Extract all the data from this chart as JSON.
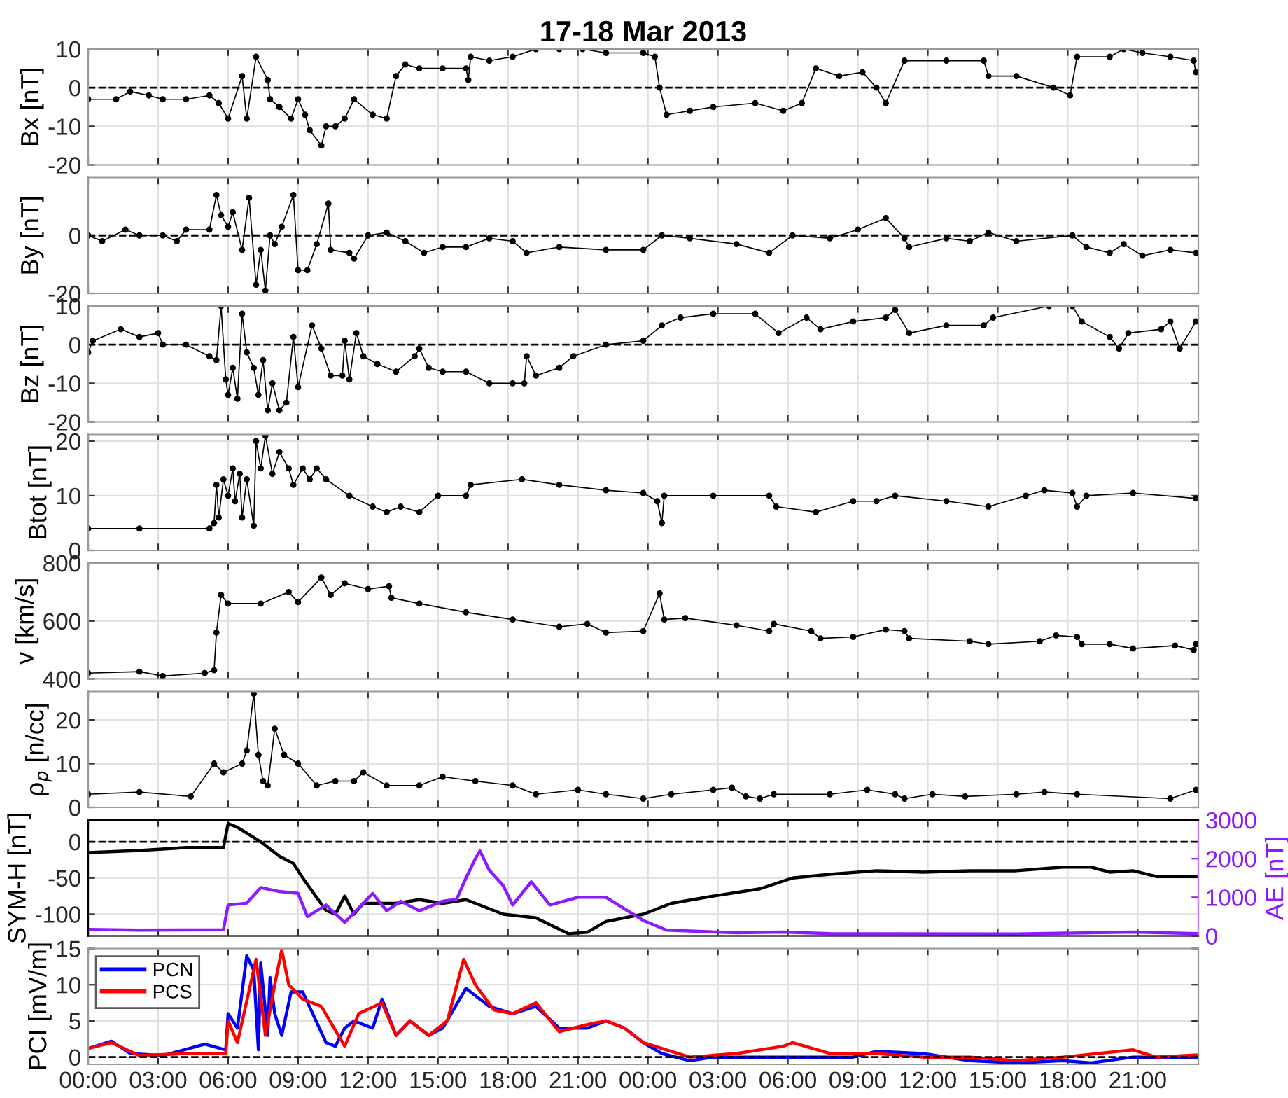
{
  "chart_data": [
    {
      "type": "line",
      "title": "17-18 Mar 2013",
      "ylabel": "Bx [nT]",
      "xlim": [
        "2013-03-17T00:00",
        "2013-03-18T23:36"
      ],
      "ylim": [
        -20,
        10
      ],
      "yticks": [
        -20,
        -10,
        0,
        10
      ],
      "grid": true,
      "marker": "circle",
      "line_style": "solid",
      "tick_labels": "y",
      "ref_lines": [
        {
          "axis": "y",
          "value": 0,
          "line_style": "dashed",
          "color": "#000000"
        }
      ],
      "xticks": [
        "2013-03-17T00:00",
        "2013-03-17T03:00",
        "2013-03-17T06:00",
        "2013-03-17T09:00",
        "2013-03-17T12:00",
        "2013-03-17T15:00",
        "2013-03-17T18:00",
        "2013-03-17T21:00",
        "2013-03-18T00:00",
        "2013-03-18T03:00",
        "2013-03-18T06:00",
        "2013-03-18T09:00",
        "2013-03-18T12:00",
        "2013-03-18T15:00",
        "2013-03-18T18:00",
        "2013-03-18T21:00"
      ],
      "series": [
        {
          "color": "#000000",
          "x": [
            "2013-03-17T00:00",
            "2013-03-17T01:12",
            "2013-03-17T01:48",
            "2013-03-17T02:36",
            "2013-03-17T03:12",
            "2013-03-17T04:12",
            "2013-03-17T05:12",
            "2013-03-17T05:36",
            "2013-03-17T06:00",
            "2013-03-17T06:36",
            "2013-03-17T06:48",
            "2013-03-17T07:12",
            "2013-03-17T07:42",
            "2013-03-17T07:48",
            "2013-03-17T08:12",
            "2013-03-17T08:42",
            "2013-03-17T09:00",
            "2013-03-17T09:18",
            "2013-03-17T09:30",
            "2013-03-17T10:00",
            "2013-03-17T10:12",
            "2013-03-17T10:36",
            "2013-03-17T11:00",
            "2013-03-17T11:24",
            "2013-03-17T12:12",
            "2013-03-17T12:48",
            "2013-03-17T13:12",
            "2013-03-17T13:36",
            "2013-03-17T14:12",
            "2013-03-17T15:12",
            "2013-03-17T16:12",
            "2013-03-17T16:18",
            "2013-03-17T16:24",
            "2013-03-17T17:12",
            "2013-03-17T18:12",
            "2013-03-17T19:12",
            "2013-03-17T20:12",
            "2013-03-17T21:12",
            "2013-03-17T22:12",
            "2013-03-17T23:48",
            "2013-03-18T00:18",
            "2013-03-18T00:30",
            "2013-03-18T00:48",
            "2013-03-18T01:48",
            "2013-03-18T02:48",
            "2013-03-18T04:36",
            "2013-03-18T05:48",
            "2013-03-18T06:36",
            "2013-03-18T07:12",
            "2013-03-18T08:12",
            "2013-03-18T09:12",
            "2013-03-18T09:48",
            "2013-03-18T10:12",
            "2013-03-18T11:00",
            "2013-03-18T12:48",
            "2013-03-18T14:24",
            "2013-03-18T14:36",
            "2013-03-18T15:48",
            "2013-03-18T17:24",
            "2013-03-18T18:06",
            "2013-03-18T18:24",
            "2013-03-18T19:48",
            "2013-03-18T20:24",
            "2013-03-18T21:12",
            "2013-03-18T22:24",
            "2013-03-18T23:24",
            "2013-03-18T23:30"
          ],
          "values": [
            -3,
            -3,
            -1,
            -2,
            -3,
            -3,
            -2,
            -4,
            -8,
            3,
            -8,
            8,
            2,
            -3,
            -5,
            -8,
            -3,
            -7,
            -11,
            -15,
            -10,
            -10,
            -8,
            -3,
            -7,
            -8,
            3,
            6,
            5,
            5,
            5,
            2,
            8,
            7,
            8,
            10,
            10,
            10,
            9,
            9,
            8,
            0,
            -7,
            -6,
            -5,
            -4,
            -6,
            -4,
            5,
            3,
            4,
            0,
            -4,
            7,
            7,
            7,
            3,
            3,
            0,
            -2,
            8,
            8,
            10,
            9,
            8,
            7,
            4
          ]
        }
      ]
    },
    {
      "type": "line",
      "ylabel": "By [nT]",
      "xlim": [
        "2013-03-17T00:00",
        "2013-03-18T23:36"
      ],
      "ylim": [
        -20,
        20
      ],
      "yticks": [
        -20,
        0
      ],
      "grid": true,
      "marker": "circle",
      "line_style": "solid",
      "tick_labels": "y",
      "ref_lines": [
        {
          "axis": "y",
          "value": 0,
          "line_style": "dashed",
          "color": "#000000"
        }
      ],
      "xticks": [
        "2013-03-17T00:00",
        "2013-03-17T03:00",
        "2013-03-17T06:00",
        "2013-03-17T09:00",
        "2013-03-17T12:00",
        "2013-03-17T15:00",
        "2013-03-17T18:00",
        "2013-03-17T21:00",
        "2013-03-18T00:00",
        "2013-03-18T03:00",
        "2013-03-18T06:00",
        "2013-03-18T09:00",
        "2013-03-18T12:00",
        "2013-03-18T15:00",
        "2013-03-18T18:00",
        "2013-03-18T21:00"
      ],
      "series": [
        {
          "color": "#000000",
          "x": [
            "2013-03-17T00:00",
            "2013-03-17T00:36",
            "2013-03-17T01:36",
            "2013-03-17T02:12",
            "2013-03-17T03:12",
            "2013-03-17T03:48",
            "2013-03-17T04:12",
            "2013-03-17T05:12",
            "2013-03-17T05:30",
            "2013-03-17T05:42",
            "2013-03-17T06:00",
            "2013-03-17T06:12",
            "2013-03-17T06:36",
            "2013-03-17T06:54",
            "2013-03-17T07:12",
            "2013-03-17T07:24",
            "2013-03-17T07:36",
            "2013-03-17T07:48",
            "2013-03-17T08:00",
            "2013-03-17T08:18",
            "2013-03-17T08:48",
            "2013-03-17T09:00",
            "2013-03-17T09:24",
            "2013-03-17T09:48",
            "2013-03-17T10:18",
            "2013-03-17T10:24",
            "2013-03-17T11:12",
            "2013-03-17T11:24",
            "2013-03-17T12:00",
            "2013-03-17T12:48",
            "2013-03-17T13:36",
            "2013-03-17T14:24",
            "2013-03-17T15:12",
            "2013-03-17T16:12",
            "2013-03-17T17:12",
            "2013-03-17T18:12",
            "2013-03-17T18:48",
            "2013-03-17T20:12",
            "2013-03-17T22:12",
            "2013-03-17T23:48",
            "2013-03-18T00:36",
            "2013-03-18T01:48",
            "2013-03-18T03:48",
            "2013-03-18T05:12",
            "2013-03-18T06:12",
            "2013-03-18T07:48",
            "2013-03-18T09:00",
            "2013-03-18T10:12",
            "2013-03-18T11:00",
            "2013-03-18T11:12",
            "2013-03-18T12:48",
            "2013-03-18T13:48",
            "2013-03-18T14:36",
            "2013-03-18T15:48",
            "2013-03-18T18:12",
            "2013-03-18T18:48",
            "2013-03-18T19:48",
            "2013-03-18T20:24",
            "2013-03-18T21:12",
            "2013-03-18T22:24",
            "2013-03-18T23:30"
          ],
          "values": [
            0,
            -2,
            2,
            0,
            0,
            -2,
            2,
            2,
            14,
            7,
            3,
            8,
            -5,
            13,
            -17,
            -5,
            -19,
            0,
            -3,
            3,
            14,
            -12,
            -12,
            -3,
            11,
            -5,
            -6,
            -8,
            0,
            1,
            -2,
            -6,
            -4,
            -4,
            -1,
            -2,
            -6,
            -4,
            -5,
            -5,
            0,
            -1,
            -3,
            -6,
            0,
            -1,
            2,
            6,
            -1,
            -4,
            -1,
            -2,
            1,
            -2,
            0,
            -4,
            -6,
            -3,
            -7,
            -5,
            -6
          ]
        }
      ]
    },
    {
      "type": "line",
      "ylabel": "Bz [nT]",
      "xlim": [
        "2013-03-17T00:00",
        "2013-03-18T23:36"
      ],
      "ylim": [
        -20,
        10
      ],
      "yticks": [
        -20,
        -10,
        0,
        10
      ],
      "grid": true,
      "marker": "circle",
      "line_style": "solid",
      "tick_labels": "y",
      "ref_lines": [
        {
          "axis": "y",
          "value": 0,
          "line_style": "dashed",
          "color": "#000000"
        }
      ],
      "xticks": [
        "2013-03-17T00:00",
        "2013-03-17T03:00",
        "2013-03-17T06:00",
        "2013-03-17T09:00",
        "2013-03-17T12:00",
        "2013-03-17T15:00",
        "2013-03-17T18:00",
        "2013-03-17T21:00",
        "2013-03-18T00:00",
        "2013-03-18T03:00",
        "2013-03-18T06:00",
        "2013-03-18T09:00",
        "2013-03-18T12:00",
        "2013-03-18T15:00",
        "2013-03-18T18:00",
        "2013-03-18T21:00"
      ],
      "series": [
        {
          "color": "#000000",
          "x": [
            "2013-03-17T00:00",
            "2013-03-17T00:12",
            "2013-03-17T01:24",
            "2013-03-17T02:12",
            "2013-03-17T03:00",
            "2013-03-17T03:12",
            "2013-03-17T04:12",
            "2013-03-17T05:12",
            "2013-03-17T05:30",
            "2013-03-17T05:42",
            "2013-03-17T05:54",
            "2013-03-17T06:00",
            "2013-03-17T06:12",
            "2013-03-17T06:24",
            "2013-03-17T06:36",
            "2013-03-17T06:48",
            "2013-03-17T07:06",
            "2013-03-17T07:18",
            "2013-03-17T07:30",
            "2013-03-17T07:42",
            "2013-03-17T07:54",
            "2013-03-17T08:12",
            "2013-03-17T08:30",
            "2013-03-17T08:48",
            "2013-03-17T09:00",
            "2013-03-17T09:36",
            "2013-03-17T10:00",
            "2013-03-17T10:24",
            "2013-03-17T10:54",
            "2013-03-17T11:00",
            "2013-03-17T11:12",
            "2013-03-17T11:30",
            "2013-03-17T11:48",
            "2013-03-17T12:24",
            "2013-03-17T13:12",
            "2013-03-17T14:00",
            "2013-03-17T14:12",
            "2013-03-17T14:36",
            "2013-03-17T15:12",
            "2013-03-17T16:12",
            "2013-03-17T17:12",
            "2013-03-17T18:12",
            "2013-03-17T18:42",
            "2013-03-17T18:48",
            "2013-03-17T19:12",
            "2013-03-17T20:12",
            "2013-03-17T20:48",
            "2013-03-17T22:12",
            "2013-03-17T23:48",
            "2013-03-18T00:36",
            "2013-03-18T01:24",
            "2013-03-18T02:48",
            "2013-03-18T04:36",
            "2013-03-18T05:36",
            "2013-03-18T06:48",
            "2013-03-18T07:24",
            "2013-03-18T08:48",
            "2013-03-18T10:12",
            "2013-03-18T10:36",
            "2013-03-18T11:12",
            "2013-03-18T12:48",
            "2013-03-18T14:24",
            "2013-03-18T14:48",
            "2013-03-18T17:12",
            "2013-03-18T18:12",
            "2013-03-18T18:36",
            "2013-03-18T19:48",
            "2013-03-18T20:12",
            "2013-03-18T20:36",
            "2013-03-18T22:00",
            "2013-03-18T22:24",
            "2013-03-18T22:48",
            "2013-03-18T23:30"
          ],
          "values": [
            -2,
            1,
            4,
            2,
            3,
            0,
            0,
            -3,
            -4,
            10,
            -9,
            -13,
            -6,
            -14,
            8,
            -2,
            -6,
            -13,
            -4,
            -17,
            -10,
            -17,
            -15,
            2,
            -11,
            5,
            -1,
            -8,
            -8,
            1,
            -9,
            3,
            -3,
            -5,
            -7,
            -3,
            -1,
            -6,
            -7,
            -7,
            -10,
            -10,
            -10,
            -3,
            -8,
            -6,
            -3,
            0,
            1,
            5,
            7,
            8,
            8,
            3,
            7,
            4,
            6,
            7,
            9,
            3,
            5,
            5,
            7,
            10,
            10,
            6,
            2,
            -1,
            3,
            4,
            6,
            -1,
            6
          ]
        }
      ]
    },
    {
      "type": "line",
      "ylabel": "Btot [nT]",
      "xlim": [
        "2013-03-17T00:00",
        "2013-03-18T23:36"
      ],
      "ylim": [
        0,
        21.2
      ],
      "yticks": [
        0,
        10,
        20
      ],
      "grid": true,
      "marker": "circle",
      "line_style": "solid",
      "tick_labels": "y",
      "xticks": [
        "2013-03-17T00:00",
        "2013-03-17T03:00",
        "2013-03-17T06:00",
        "2013-03-17T09:00",
        "2013-03-17T12:00",
        "2013-03-17T15:00",
        "2013-03-17T18:00",
        "2013-03-17T21:00",
        "2013-03-18T00:00",
        "2013-03-18T03:00",
        "2013-03-18T06:00",
        "2013-03-18T09:00",
        "2013-03-18T12:00",
        "2013-03-18T15:00",
        "2013-03-18T18:00",
        "2013-03-18T21:00"
      ],
      "series": [
        {
          "color": "#000000",
          "x": [
            "2013-03-17T00:00",
            "2013-03-17T02:12",
            "2013-03-17T05:12",
            "2013-03-17T05:24",
            "2013-03-17T05:30",
            "2013-03-17T05:36",
            "2013-03-17T05:48",
            "2013-03-17T06:00",
            "2013-03-17T06:12",
            "2013-03-17T06:18",
            "2013-03-17T06:30",
            "2013-03-17T06:36",
            "2013-03-17T06:48",
            "2013-03-17T07:06",
            "2013-03-17T07:12",
            "2013-03-17T07:24",
            "2013-03-17T07:36",
            "2013-03-17T07:54",
            "2013-03-17T08:12",
            "2013-03-17T08:36",
            "2013-03-17T08:48",
            "2013-03-17T09:12",
            "2013-03-17T09:30",
            "2013-03-17T09:48",
            "2013-03-17T10:12",
            "2013-03-17T11:12",
            "2013-03-17T12:12",
            "2013-03-17T12:48",
            "2013-03-17T13:24",
            "2013-03-17T14:12",
            "2013-03-17T15:00",
            "2013-03-17T16:12",
            "2013-03-17T16:24",
            "2013-03-17T18:36",
            "2013-03-17T20:12",
            "2013-03-17T22:12",
            "2013-03-17T23:48",
            "2013-03-18T00:24",
            "2013-03-18T00:36",
            "2013-03-18T00:42",
            "2013-03-18T02:48",
            "2013-03-18T05:12",
            "2013-03-18T05:30",
            "2013-03-18T07:12",
            "2013-03-18T08:48",
            "2013-03-18T09:48",
            "2013-03-18T10:36",
            "2013-03-18T12:48",
            "2013-03-18T14:36",
            "2013-03-18T16:12",
            "2013-03-18T17:00",
            "2013-03-18T18:12",
            "2013-03-18T18:24",
            "2013-03-18T18:48",
            "2013-03-18T20:48",
            "2013-03-18T23:30"
          ],
          "values": [
            4,
            4,
            4,
            5,
            12,
            6,
            13,
            10,
            15,
            9,
            14,
            6,
            13,
            4.5,
            20,
            15,
            21,
            14,
            18,
            15,
            12,
            15,
            13,
            15,
            13,
            10,
            8,
            7,
            8,
            7,
            10,
            10,
            12,
            13,
            12,
            11,
            10.5,
            9,
            5,
            10,
            10,
            10,
            8,
            7,
            9,
            9,
            10,
            9,
            8,
            10,
            11,
            10.5,
            8,
            10,
            10.5,
            9.5
          ]
        }
      ]
    },
    {
      "type": "line",
      "ylabel": "v [km/s]",
      "xlim": [
        "2013-03-17T00:00",
        "2013-03-18T23:36"
      ],
      "ylim": [
        400,
        800
      ],
      "yticks": [
        400,
        600,
        800
      ],
      "grid": true,
      "marker": "circle",
      "line_style": "solid",
      "tick_labels": "y",
      "xticks": [
        "2013-03-17T00:00",
        "2013-03-17T03:00",
        "2013-03-17T06:00",
        "2013-03-17T09:00",
        "2013-03-17T12:00",
        "2013-03-17T15:00",
        "2013-03-17T18:00",
        "2013-03-17T21:00",
        "2013-03-18T00:00",
        "2013-03-18T03:00",
        "2013-03-18T06:00",
        "2013-03-18T09:00",
        "2013-03-18T12:00",
        "2013-03-18T15:00",
        "2013-03-18T18:00",
        "2013-03-18T21:00"
      ],
      "series": [
        {
          "color": "#000000",
          "x": [
            "2013-03-17T00:00",
            "2013-03-17T02:12",
            "2013-03-17T03:12",
            "2013-03-17T05:00",
            "2013-03-17T05:24",
            "2013-03-17T05:30",
            "2013-03-17T05:42",
            "2013-03-17T06:00",
            "2013-03-17T07:24",
            "2013-03-17T08:36",
            "2013-03-17T09:00",
            "2013-03-17T10:00",
            "2013-03-17T10:24",
            "2013-03-17T11:00",
            "2013-03-17T12:00",
            "2013-03-17T12:54",
            "2013-03-17T13:00",
            "2013-03-17T14:12",
            "2013-03-17T16:12",
            "2013-03-17T18:12",
            "2013-03-17T20:12",
            "2013-03-17T21:24",
            "2013-03-17T22:12",
            "2013-03-17T23:48",
            "2013-03-18T00:30",
            "2013-03-18T00:42",
            "2013-03-18T01:36",
            "2013-03-18T03:48",
            "2013-03-18T05:12",
            "2013-03-18T05:24",
            "2013-03-18T07:00",
            "2013-03-18T07:24",
            "2013-03-18T08:48",
            "2013-03-18T10:12",
            "2013-03-18T11:00",
            "2013-03-18T11:12",
            "2013-03-18T13:48",
            "2013-03-18T14:36",
            "2013-03-18T16:48",
            "2013-03-18T17:30",
            "2013-03-18T18:24",
            "2013-03-18T18:36",
            "2013-03-18T19:48",
            "2013-03-18T20:48",
            "2013-03-18T22:36",
            "2013-03-18T23:24",
            "2013-03-18T23:30"
          ],
          "values": [
            420,
            425,
            410,
            420,
            430,
            560,
            690,
            660,
            660,
            700,
            665,
            750,
            690,
            730,
            710,
            720,
            680,
            660,
            630,
            605,
            580,
            590,
            560,
            565,
            695,
            605,
            610,
            585,
            565,
            590,
            565,
            540,
            545,
            570,
            565,
            540,
            530,
            520,
            530,
            550,
            545,
            520,
            520,
            505,
            515,
            500,
            520
          ]
        }
      ]
    },
    {
      "type": "line",
      "ylabel": "ρ$_{p}$ [n/cc]",
      "xlim": [
        "2013-03-17T00:00",
        "2013-03-18T23:36"
      ],
      "ylim": [
        0,
        26.5
      ],
      "yticks": [
        0,
        10,
        20
      ],
      "grid": true,
      "marker": "circle",
      "line_style": "solid",
      "tick_labels": "y",
      "xticks": [
        "2013-03-17T00:00",
        "2013-03-17T03:00",
        "2013-03-17T06:00",
        "2013-03-17T09:00",
        "2013-03-17T12:00",
        "2013-03-17T15:00",
        "2013-03-17T18:00",
        "2013-03-17T21:00",
        "2013-03-18T00:00",
        "2013-03-18T03:00",
        "2013-03-18T06:00",
        "2013-03-18T09:00",
        "2013-03-18T12:00",
        "2013-03-18T15:00",
        "2013-03-18T18:00",
        "2013-03-18T21:00"
      ],
      "series": [
        {
          "color": "#000000",
          "x": [
            "2013-03-17T00:00",
            "2013-03-17T02:12",
            "2013-03-17T04:24",
            "2013-03-17T05:24",
            "2013-03-17T05:48",
            "2013-03-17T06:36",
            "2013-03-17T06:48",
            "2013-03-17T07:06",
            "2013-03-17T07:18",
            "2013-03-17T07:30",
            "2013-03-17T07:42",
            "2013-03-17T08:00",
            "2013-03-17T08:24",
            "2013-03-17T09:00",
            "2013-03-17T09:48",
            "2013-03-17T10:36",
            "2013-03-17T11:24",
            "2013-03-17T11:48",
            "2013-03-17T12:48",
            "2013-03-17T14:12",
            "2013-03-17T15:12",
            "2013-03-17T16:36",
            "2013-03-17T18:12",
            "2013-03-17T19:12",
            "2013-03-17T21:00",
            "2013-03-17T22:12",
            "2013-03-17T23:48",
            "2013-03-18T01:00",
            "2013-03-18T02:48",
            "2013-03-18T03:36",
            "2013-03-18T04:12",
            "2013-03-18T04:48",
            "2013-03-18T05:24",
            "2013-03-18T07:48",
            "2013-03-18T09:24",
            "2013-03-18T10:36",
            "2013-03-18T11:00",
            "2013-03-18T12:12",
            "2013-03-18T13:36",
            "2013-03-18T15:48",
            "2013-03-18T17:00",
            "2013-03-18T18:24",
            "2013-03-18T22:24",
            "2013-03-18T23:30"
          ],
          "values": [
            3,
            3.5,
            2.5,
            10,
            8,
            10,
            13,
            26,
            12,
            6,
            5,
            18,
            12,
            10,
            5,
            6,
            6,
            8,
            5,
            5,
            7,
            6,
            5,
            3,
            4,
            3,
            2,
            3,
            4,
            4.5,
            2.5,
            2,
            3,
            3,
            4,
            3,
            2,
            3,
            2.5,
            3,
            3.5,
            3,
            2,
            4
          ]
        }
      ]
    },
    {
      "type": "line",
      "ylabel": "SYM-H [nT]",
      "y2label": "AE [nT]",
      "xlim": [
        "2013-03-17T00:00",
        "2013-03-18T23:36"
      ],
      "ylim": [
        -130,
        30
      ],
      "yticks": [
        -100,
        -50,
        0
      ],
      "y2lim": [
        0,
        3000
      ],
      "y2ticks": [
        0,
        1000,
        2000,
        3000
      ],
      "grid": true,
      "line_style": "solid",
      "tick_labels": "y",
      "ref_lines": [
        {
          "axis": "y",
          "value": 0,
          "line_style": "dashed",
          "color": "#000000"
        }
      ],
      "xticks": [
        "2013-03-17T00:00",
        "2013-03-17T03:00",
        "2013-03-17T06:00",
        "2013-03-17T09:00",
        "2013-03-17T12:00",
        "2013-03-17T15:00",
        "2013-03-17T18:00",
        "2013-03-17T21:00",
        "2013-03-18T00:00",
        "2013-03-18T03:00",
        "2013-03-18T06:00",
        "2013-03-18T09:00",
        "2013-03-18T12:00",
        "2013-03-18T15:00",
        "2013-03-18T18:00",
        "2013-03-18T21:00"
      ],
      "series": [
        {
          "color": "#000000",
          "x": [
            "2013-03-17T00:00",
            "2013-03-17T02:12",
            "2013-03-17T04:12",
            "2013-03-17T05:48",
            "2013-03-17T06:00",
            "2013-03-17T06:24",
            "2013-03-17T07:24",
            "2013-03-17T08:12",
            "2013-03-17T08:48",
            "2013-03-17T09:12",
            "2013-03-17T10:12",
            "2013-03-17T10:36",
            "2013-03-17T11:00",
            "2013-03-17T11:24",
            "2013-03-17T11:48",
            "2013-03-17T13:12",
            "2013-03-17T14:12",
            "2013-03-17T15:12",
            "2013-03-17T16:12",
            "2013-03-17T17:48",
            "2013-03-17T19:12",
            "2013-03-17T20:36",
            "2013-03-17T21:24",
            "2013-03-17T22:12",
            "2013-03-17T23:48",
            "2013-03-18T01:00",
            "2013-03-18T02:48",
            "2013-03-18T04:48",
            "2013-03-18T06:12",
            "2013-03-18T07:48",
            "2013-03-18T09:48",
            "2013-03-18T11:48",
            "2013-03-18T13:48",
            "2013-03-18T15:48",
            "2013-03-18T17:48",
            "2013-03-18T19:00",
            "2013-03-18T19:48",
            "2013-03-18T20:48",
            "2013-03-18T21:48",
            "2013-03-18T23:30"
          ],
          "values": [
            -15,
            -12,
            -8,
            -8,
            25,
            20,
            0,
            -20,
            -30,
            -50,
            -95,
            -100,
            -75,
            -100,
            -85,
            -85,
            -80,
            -85,
            -80,
            -100,
            -105,
            -127,
            -125,
            -110,
            -100,
            -85,
            -75,
            -65,
            -50,
            -45,
            -40,
            -42,
            -40,
            -40,
            -35,
            -35,
            -42,
            -40,
            -48,
            -48
          ]
        },
        {
          "color": "#8b1aff",
          "axis": "y2",
          "x": [
            "2013-03-17T00:00",
            "2013-03-17T02:12",
            "2013-03-17T05:48",
            "2013-03-17T06:00",
            "2013-03-17T06:48",
            "2013-03-17T07:24",
            "2013-03-17T08:12",
            "2013-03-17T09:00",
            "2013-03-17T09:24",
            "2013-03-17T10:12",
            "2013-03-17T11:00",
            "2013-03-17T11:48",
            "2013-03-17T12:12",
            "2013-03-17T12:48",
            "2013-03-17T13:24",
            "2013-03-17T14:12",
            "2013-03-17T15:12",
            "2013-03-17T15:48",
            "2013-03-17T16:12",
            "2013-03-17T16:36",
            "2013-03-17T16:48",
            "2013-03-17T17:12",
            "2013-03-17T17:48",
            "2013-03-17T18:12",
            "2013-03-17T19:00",
            "2013-03-17T19:48",
            "2013-03-17T21:00",
            "2013-03-17T22:12",
            "2013-03-17T23:48",
            "2013-03-18T00:48",
            "2013-03-18T03:48",
            "2013-03-18T05:48",
            "2013-03-18T07:48",
            "2013-03-18T15:48",
            "2013-03-18T19:00",
            "2013-03-18T20:48",
            "2013-03-18T23:30"
          ],
          "values": [
            170,
            150,
            160,
            800,
            850,
            1250,
            1150,
            1100,
            500,
            800,
            350,
            850,
            1100,
            650,
            900,
            650,
            900,
            950,
            1500,
            2000,
            2200,
            1700,
            1300,
            800,
            1400,
            800,
            1000,
            1000,
            400,
            150,
            80,
            100,
            60,
            50,
            80,
            100,
            60
          ]
        }
      ]
    },
    {
      "type": "line",
      "ylabel": "PCI [mV/m]",
      "xlim": [
        "2013-03-17T00:00",
        "2013-03-18T23:36"
      ],
      "ylim": [
        -1,
        15
      ],
      "yticks": [
        0,
        5,
        10,
        15
      ],
      "grid": true,
      "line_style": "solid",
      "legend": "top left",
      "ref_lines": [
        {
          "axis": "y",
          "value": 0,
          "line_style": "dashed",
          "color": "#000000"
        }
      ],
      "xticks": [
        {
          "value": "2013-03-17T00:00",
          "label": "00:00"
        },
        {
          "value": "2013-03-17T03:00",
          "label": "03:00"
        },
        {
          "value": "2013-03-17T06:00",
          "label": "06:00"
        },
        {
          "value": "2013-03-17T09:00",
          "label": "09:00"
        },
        {
          "value": "2013-03-17T12:00",
          "label": "12:00"
        },
        {
          "value": "2013-03-17T15:00",
          "label": "15:00"
        },
        {
          "value": "2013-03-17T18:00",
          "label": "18:00"
        },
        {
          "value": "2013-03-17T21:00",
          "label": "21:00"
        },
        {
          "value": "2013-03-18T00:00",
          "label": "00:00"
        },
        {
          "value": "2013-03-18T03:00",
          "label": "03:00"
        },
        {
          "value": "2013-03-18T06:00",
          "label": "06:00"
        },
        {
          "value": "2013-03-18T09:00",
          "label": "09:00"
        },
        {
          "value": "2013-03-18T12:00",
          "label": "12:00"
        },
        {
          "value": "2013-03-18T15:00",
          "label": "15:00"
        },
        {
          "value": "2013-03-18T18:00",
          "label": "18:00"
        },
        {
          "value": "2013-03-18T21:00",
          "label": "21:00"
        }
      ],
      "series": [
        {
          "name": "PCN",
          "color": "#0000ff",
          "x": [
            "2013-03-17T00:00",
            "2013-03-17T01:00",
            "2013-03-17T01:48",
            "2013-03-17T03:12",
            "2013-03-17T05:00",
            "2013-03-17T05:54",
            "2013-03-17T06:00",
            "2013-03-17T06:24",
            "2013-03-17T06:48",
            "2013-03-17T07:06",
            "2013-03-17T07:18",
            "2013-03-17T07:24",
            "2013-03-17T07:42",
            "2013-03-17T07:48",
            "2013-03-17T08:00",
            "2013-03-17T08:18",
            "2013-03-17T08:42",
            "2013-03-17T09:12",
            "2013-03-17T10:12",
            "2013-03-17T10:36",
            "2013-03-17T11:00",
            "2013-03-17T11:24",
            "2013-03-17T12:12",
            "2013-03-17T12:36",
            "2013-03-17T13:12",
            "2013-03-17T13:48",
            "2013-03-17T14:36",
            "2013-03-17T15:12",
            "2013-03-17T16:12",
            "2013-03-17T17:12",
            "2013-03-17T18:12",
            "2013-03-17T19:12",
            "2013-03-17T20:12",
            "2013-03-17T21:24",
            "2013-03-17T22:12",
            "2013-03-17T23:00",
            "2013-03-17T23:48",
            "2013-03-18T00:36",
            "2013-03-18T01:48",
            "2013-03-18T02:48",
            "2013-03-18T05:48",
            "2013-03-18T08:48",
            "2013-03-18T09:48",
            "2013-03-18T11:48",
            "2013-03-18T13:48",
            "2013-03-18T15:48",
            "2013-03-18T17:48",
            "2013-03-18T19:00",
            "2013-03-18T20:48",
            "2013-03-18T23:30"
          ],
          "values": [
            1.2,
            2.2,
            0.5,
            0.2,
            1.8,
            1,
            6,
            4,
            14,
            12,
            1,
            13,
            3,
            11,
            6,
            3,
            9,
            9,
            2,
            1.5,
            4,
            5,
            4,
            8,
            3,
            5,
            3,
            4,
            9.5,
            7,
            6,
            7,
            4,
            4,
            5,
            4,
            2,
            0.5,
            -0.5,
            0,
            0,
            0,
            0.8,
            0.5,
            -0.5,
            -0.8,
            -0.5,
            -0.8,
            0,
            0
          ]
        },
        {
          "name": "PCS",
          "color": "#ff0000",
          "x": [
            "2013-03-17T00:00",
            "2013-03-17T01:00",
            "2013-03-17T02:12",
            "2013-03-17T04:12",
            "2013-03-17T05:54",
            "2013-03-17T06:00",
            "2013-03-17T06:24",
            "2013-03-17T07:12",
            "2013-03-17T07:36",
            "2013-03-17T08:00",
            "2013-03-17T08:18",
            "2013-03-17T08:36",
            "2013-03-17T09:12",
            "2013-03-17T10:00",
            "2013-03-17T11:00",
            "2013-03-17T11:36",
            "2013-03-17T12:36",
            "2013-03-17T13:12",
            "2013-03-17T13:48",
            "2013-03-17T14:36",
            "2013-03-17T15:24",
            "2013-03-17T16:06",
            "2013-03-17T16:36",
            "2013-03-17T17:24",
            "2013-03-17T18:12",
            "2013-03-17T19:12",
            "2013-03-17T20:12",
            "2013-03-17T21:24",
            "2013-03-17T22:12",
            "2013-03-17T23:00",
            "2013-03-17T23:48",
            "2013-03-18T00:48",
            "2013-03-18T01:48",
            "2013-03-18T03:48",
            "2013-03-18T05:48",
            "2013-03-18T06:12",
            "2013-03-18T07:48",
            "2013-03-18T09:48",
            "2013-03-18T11:48",
            "2013-03-18T13:48",
            "2013-03-18T15:48",
            "2013-03-18T17:48",
            "2013-03-18T20:48",
            "2013-03-18T21:48",
            "2013-03-18T23:30"
          ],
          "values": [
            1.2,
            2,
            0.2,
            0.5,
            0.5,
            5,
            2,
            13.5,
            3,
            10,
            14.8,
            10,
            8,
            7,
            1.5,
            6,
            7.5,
            3,
            5,
            3,
            5,
            13.5,
            10,
            6.5,
            6,
            7.5,
            3.5,
            4.5,
            5,
            4,
            2,
            1,
            0,
            0.5,
            1.5,
            2,
            0.5,
            0.5,
            0,
            0,
            -0.5,
            0,
            1,
            0,
            0.3
          ]
        }
      ]
    }
  ]
}
